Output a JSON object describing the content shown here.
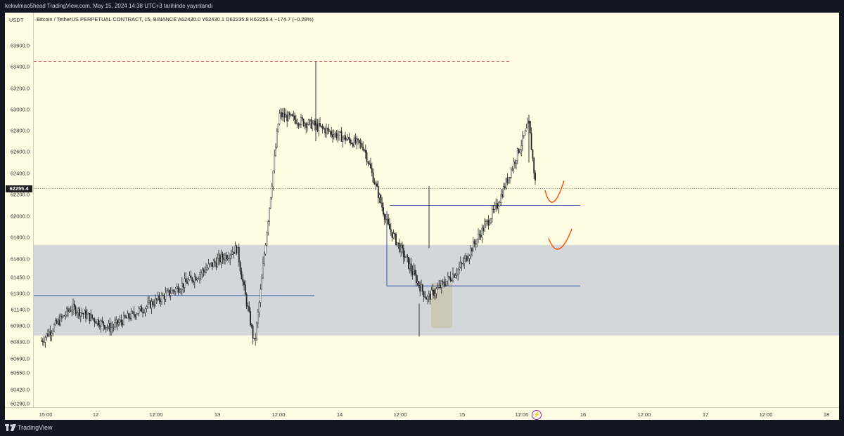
{
  "header": {
    "publish_line": "kekwlmao5head TradingView.com, May 15, 2024 14:38 UTC+3 tarihinde yayınlandı"
  },
  "chart": {
    "title": "Bitcoin / TetherUS PERPETUAL CONTRACT, 15, BINANCE  A62430.0  Y62430.1  D62235.8  K62255.4  −174.7 (−0.28%)",
    "unit": "USDT",
    "current_price": "62255.4",
    "price_ticks": [
      "63600.0",
      "63400.0",
      "63200.0",
      "63000.0",
      "62800.0",
      "62600.0",
      "62400.0",
      "62200.0",
      "62000.0",
      "61800.0",
      "61600.0",
      "61450.0",
      "61300.0",
      "61140.0",
      "60980.0",
      "60830.0",
      "60690.0",
      "60550.0",
      "60420.0",
      "60290.0"
    ],
    "time_ticks": [
      "15:00",
      "12",
      "12:00",
      "13",
      "12:00",
      "14",
      "12:00",
      "15",
      "12:00",
      "16",
      "12:00",
      "17",
      "12:00",
      "18"
    ],
    "colors": {
      "background": "#fefde4",
      "zone": "#d3d7d9",
      "level_line": "#3557a8",
      "dashed_line": "#e06666",
      "curve": "#ff4a00",
      "candle": "#222222"
    }
  },
  "chart_data": {
    "type": "candlestick",
    "symbol": "Bitcoin / TetherUS PERPETUAL CONTRACT",
    "interval": "15",
    "exchange": "BINANCE",
    "ohlc_last": {
      "open": 62430.0,
      "high": 62430.1,
      "low": 62235.8,
      "close": 62255.4,
      "change": -174.7,
      "change_pct": -0.28
    },
    "ylim": [
      60200,
      63800
    ],
    "price_path": [
      [
        "15:00",
        60840
      ],
      [
        "12",
        61160
      ],
      [
        "12:00",
        60960
      ],
      [
        "13",
        61700
      ],
      [
        "13",
        60800
      ],
      [
        "12:00",
        62950
      ],
      [
        "14",
        62850
      ],
      [
        "14",
        62650
      ],
      [
        "12:00",
        61900
      ],
      [
        "12:00",
        61250
      ],
      [
        "15",
        61550
      ],
      [
        "12:00",
        62100
      ],
      [
        "12:00",
        62860
      ],
      [
        "12:00",
        62255
      ]
    ],
    "annotations": {
      "dashed_line_price": 63450,
      "zone_prices": [
        61730,
        60890
      ],
      "level_lines": [
        61280,
        62100,
        61370
      ]
    }
  },
  "footer": {
    "brand": "TradingView"
  }
}
